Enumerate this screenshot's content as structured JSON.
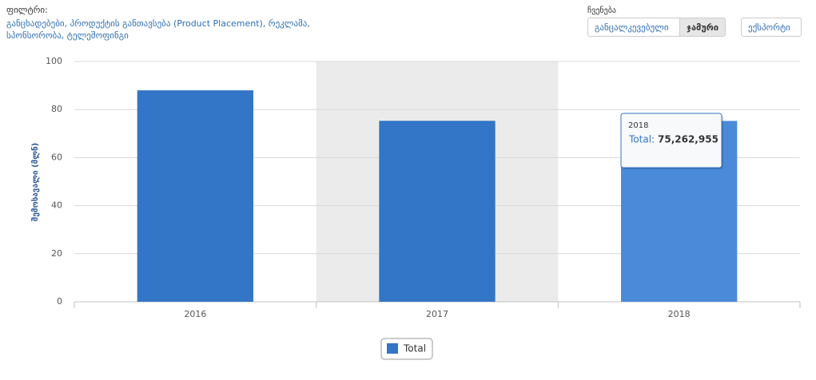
{
  "header": {
    "filter_label": "ფილტრი:",
    "filter_text": "განცხადებები, პროდუქტის განთავსება (Product Placement), რეკლამა, სპონსორობა, ტელეშოფინგი",
    "view_label": "ჩვენება",
    "view_buttons": [
      "განცალკევებული",
      "ჯამური"
    ],
    "export_button": "ექსპორტი"
  },
  "chart_data": {
    "type": "bar",
    "y_axis_title": "შემოსავალი (მლნ)",
    "categories": [
      "2016",
      "2017",
      "2018"
    ],
    "series": [
      {
        "name": "Total",
        "color": "#3375c6",
        "values": [
          88,
          75.3,
          75.262955
        ]
      }
    ],
    "ylim": [
      0,
      100
    ],
    "yticks": [
      0,
      20,
      40,
      60,
      80,
      100
    ],
    "grid": true,
    "plot_band_category": "2017",
    "tooltip": {
      "category": "2018",
      "label": "Total:",
      "value_label": "75,262,955"
    }
  }
}
